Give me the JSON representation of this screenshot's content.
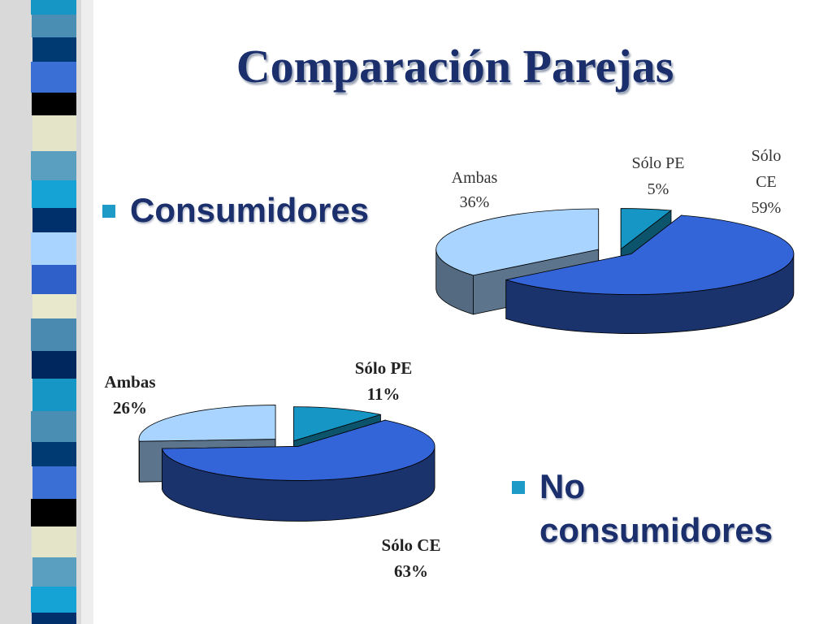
{
  "title": "Comparación Parejas",
  "bullets": {
    "consumidores": "Consumidores",
    "no_consumidores_line1": "No",
    "no_consumidores_line2": "consumidores"
  },
  "colors": {
    "ambas": "#a8d4ff",
    "solo_pe": "#1696c4",
    "solo_ce": "#3465d8",
    "title": "#1a2f6b",
    "bullet_marker": "#1f9bc7"
  },
  "chart_data": [
    {
      "type": "pie",
      "style": "3d-exploded",
      "group": "Consumidores",
      "slices": [
        {
          "label_line1": "Ambas",
          "label_line2": "36%",
          "value": 36
        },
        {
          "label_line1": "Sólo PE",
          "label_line2": "5%",
          "value": 5
        },
        {
          "label_line1": "Sólo",
          "label_line2": "CE",
          "label_line3": "59%",
          "value": 59
        }
      ]
    },
    {
      "type": "pie",
      "style": "3d-exploded",
      "group": "No consumidores",
      "slices": [
        {
          "label_line1": "Ambas",
          "label_line2": "26%",
          "value": 26
        },
        {
          "label_line1": "Sólo PE",
          "label_line2": "11%",
          "value": 11
        },
        {
          "label_line1": "Sólo CE",
          "label_line2": "63%",
          "value": 63
        }
      ]
    }
  ]
}
